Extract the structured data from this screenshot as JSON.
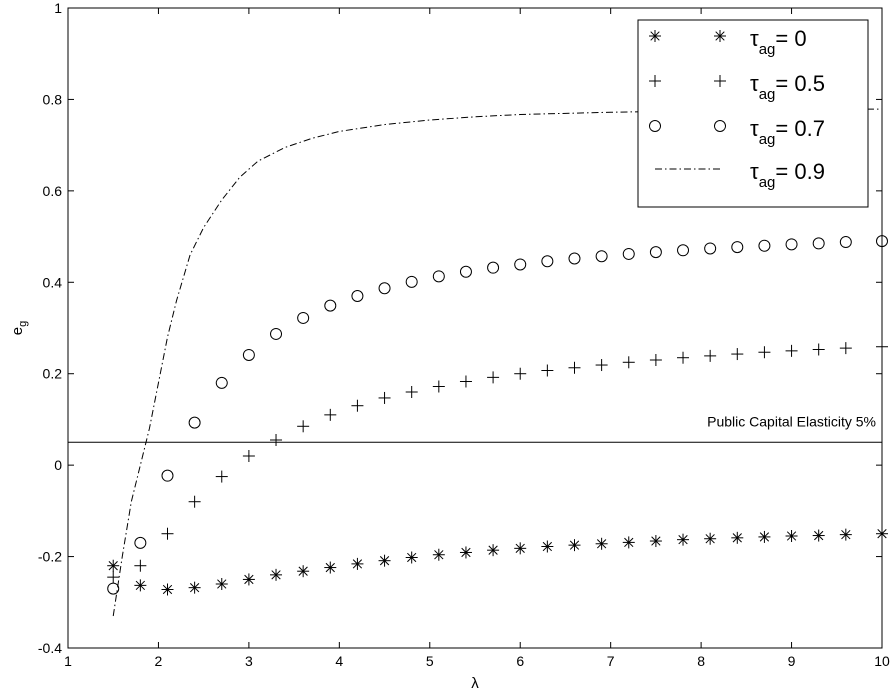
{
  "chart_data": {
    "type": "scatter",
    "xlabel": "λ",
    "ylabel": "e",
    "ylabel_sub": "g",
    "xlim": [
      1,
      10
    ],
    "ylim": [
      -0.4,
      1
    ],
    "xticks": [
      "1",
      "2",
      "3",
      "4",
      "5",
      "6",
      "7",
      "8",
      "9",
      "10"
    ],
    "yticks": [
      "-0.4",
      "-0.2",
      "0",
      "0.2",
      "0.4",
      "0.6",
      "0.8",
      "1"
    ],
    "grid": false,
    "legend_position": "top-right",
    "reference_line": {
      "y": 0.05,
      "label": "Public Capital Elasticity 5%"
    },
    "series": [
      {
        "name": "= 0",
        "name_symbol": "τ",
        "name_sub": "ag",
        "marker": "asterisk",
        "x": [
          1.5,
          1.8,
          2.1,
          2.4,
          2.7,
          3.0,
          3.3,
          3.6,
          3.9,
          4.2,
          4.5,
          4.8,
          5.1,
          5.4,
          5.7,
          6.0,
          6.3,
          6.6,
          6.9,
          7.2,
          7.5,
          7.8,
          8.1,
          8.4,
          8.7,
          9.0,
          9.3,
          9.6,
          10.0
        ],
        "y": [
          -0.22,
          -0.263,
          -0.272,
          -0.268,
          -0.26,
          -0.25,
          -0.24,
          -0.232,
          -0.224,
          -0.216,
          -0.209,
          -0.202,
          -0.196,
          -0.191,
          -0.186,
          -0.182,
          -0.178,
          -0.175,
          -0.172,
          -0.169,
          -0.166,
          -0.163,
          -0.161,
          -0.159,
          -0.157,
          -0.155,
          -0.154,
          -0.152,
          -0.15
        ]
      },
      {
        "name": "= 0.5",
        "name_symbol": "τ",
        "name_sub": "ag",
        "marker": "plus",
        "x": [
          1.5,
          1.8,
          2.1,
          2.4,
          2.7,
          3.0,
          3.3,
          3.6,
          3.9,
          4.2,
          4.5,
          4.8,
          5.1,
          5.4,
          5.7,
          6.0,
          6.3,
          6.6,
          6.9,
          7.2,
          7.5,
          7.8,
          8.1,
          8.4,
          8.7,
          9.0,
          9.3,
          9.6,
          10.0
        ],
        "y": [
          -0.245,
          -0.22,
          -0.15,
          -0.08,
          -0.025,
          0.02,
          0.055,
          0.085,
          0.11,
          0.13,
          0.147,
          0.16,
          0.172,
          0.183,
          0.192,
          0.2,
          0.207,
          0.213,
          0.219,
          0.225,
          0.23,
          0.235,
          0.239,
          0.243,
          0.247,
          0.25,
          0.253,
          0.256,
          0.259
        ]
      },
      {
        "name": "= 0.7",
        "name_symbol": "τ",
        "name_sub": "ag",
        "marker": "circle",
        "x": [
          1.5,
          1.8,
          2.1,
          2.4,
          2.7,
          3.0,
          3.3,
          3.6,
          3.9,
          4.2,
          4.5,
          4.8,
          5.1,
          5.4,
          5.7,
          6.0,
          6.3,
          6.6,
          6.9,
          7.2,
          7.5,
          7.8,
          8.1,
          8.4,
          8.7,
          9.0,
          9.3,
          9.6,
          10.0
        ],
        "y": [
          -0.27,
          -0.17,
          -0.023,
          0.093,
          0.18,
          0.241,
          0.287,
          0.322,
          0.349,
          0.37,
          0.387,
          0.401,
          0.413,
          0.423,
          0.432,
          0.439,
          0.446,
          0.452,
          0.457,
          0.462,
          0.466,
          0.47,
          0.474,
          0.477,
          0.48,
          0.483,
          0.485,
          0.488,
          0.49
        ]
      },
      {
        "name": "= 0.9",
        "name_symbol": "τ",
        "name_sub": "ag",
        "marker": "dashdot-line",
        "x": [
          1.5,
          1.6,
          1.7,
          1.8,
          1.9,
          2.0,
          2.1,
          2.2,
          2.35,
          2.5,
          2.7,
          2.9,
          3.1,
          3.4,
          3.7,
          4.0,
          4.5,
          5.0,
          5.5,
          6.0,
          7.0,
          8.0,
          9.0,
          10.0
        ],
        "y": [
          -0.33,
          -0.2,
          -0.08,
          0.0,
          0.08,
          0.18,
          0.28,
          0.36,
          0.46,
          0.52,
          0.58,
          0.63,
          0.665,
          0.695,
          0.715,
          0.73,
          0.745,
          0.755,
          0.762,
          0.767,
          0.772,
          0.775,
          0.777,
          0.779
        ]
      }
    ]
  }
}
